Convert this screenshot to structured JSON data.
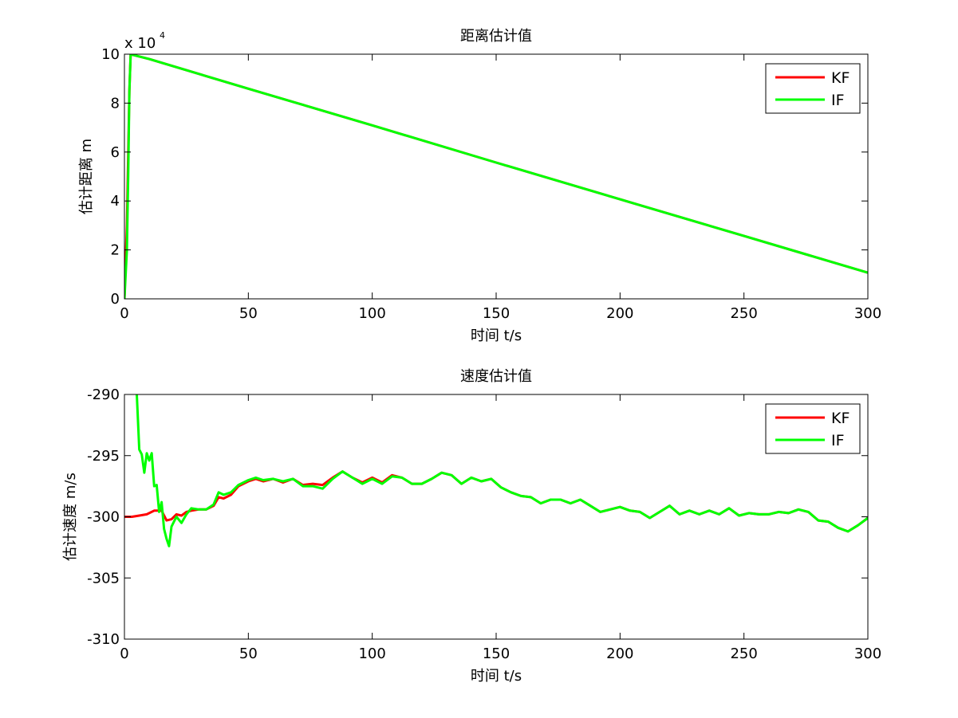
{
  "chart_data": [
    {
      "type": "line",
      "title": "距离估计值",
      "xlabel": "时间 t/s",
      "ylabel": "估计距离 m",
      "xlim": [
        0,
        300
      ],
      "ylim": [
        0,
        100000
      ],
      "xticks": [
        0,
        50,
        100,
        150,
        200,
        250,
        300
      ],
      "yticks": [
        0,
        20000,
        40000,
        60000,
        80000,
        100000
      ],
      "ytick_labels": [
        "0",
        "2",
        "4",
        "6",
        "8",
        "10"
      ],
      "y_multiplier": "x 10",
      "y_multiplier_exp": "4",
      "legend_position": "top-right",
      "grid": false,
      "series": [
        {
          "name": "KF",
          "color": "#ff0000",
          "x": [
            0,
            1,
            2,
            2.5,
            3,
            10,
            50,
            100,
            150,
            200,
            250,
            300
          ],
          "y": [
            0,
            30000,
            85000,
            100000,
            99800,
            98000,
            85900,
            70900,
            55700,
            40700,
            25700,
            10700
          ]
        },
        {
          "name": "IF",
          "color": "#00ff00",
          "x": [
            0,
            1,
            1.5,
            2,
            2.5,
            3,
            10,
            50,
            100,
            150,
            200,
            250,
            300
          ],
          "y": [
            0,
            20000,
            50000,
            85000,
            100000,
            99800,
            98000,
            85900,
            70900,
            55700,
            40700,
            25700,
            10700
          ]
        }
      ]
    },
    {
      "type": "line",
      "title": "速度估计值",
      "xlabel": "时间 t/s",
      "ylabel": "估计速度 m/s",
      "xlim": [
        0,
        300
      ],
      "ylim": [
        -310,
        -290
      ],
      "xticks": [
        0,
        50,
        100,
        150,
        200,
        250,
        300
      ],
      "yticks": [
        -310,
        -305,
        -300,
        -295,
        -290
      ],
      "ytick_labels": [
        "-310",
        "-305",
        "-300",
        "-295",
        "-290"
      ],
      "legend_position": "top-right",
      "grid": false,
      "series": [
        {
          "name": "KF",
          "color": "#ff0000",
          "x": [
            0,
            3,
            6,
            9,
            12,
            15,
            17,
            19,
            21,
            23,
            25,
            27,
            30,
            33,
            36,
            38,
            40,
            43,
            46,
            50,
            53,
            56,
            60,
            64,
            68,
            72,
            76,
            80,
            84,
            88,
            92,
            96,
            100,
            104,
            108,
            112,
            116,
            120,
            124,
            128,
            132,
            136,
            140,
            144,
            148,
            152,
            156,
            160,
            164,
            168,
            172,
            176,
            180,
            184,
            188,
            192,
            196,
            200,
            204,
            208,
            212,
            216,
            220,
            224,
            228,
            232,
            236,
            240,
            244,
            248,
            252,
            256,
            260,
            264,
            268,
            272,
            276,
            280,
            284,
            288,
            292,
            296,
            300
          ],
          "y": [
            -300,
            -300,
            -299.9,
            -299.8,
            -299.5,
            -299.5,
            -300.3,
            -300.2,
            -299.8,
            -299.9,
            -299.6,
            -299.5,
            -299.4,
            -299.4,
            -299.1,
            -298.4,
            -298.5,
            -298.2,
            -297.5,
            -297.1,
            -296.9,
            -297.1,
            -296.9,
            -297.2,
            -296.9,
            -297.4,
            -297.3,
            -297.4,
            -296.8,
            -296.3,
            -296.8,
            -297.2,
            -296.8,
            -297.2,
            -296.6,
            -296.8,
            -297.3,
            -297.3,
            -296.9,
            -296.4,
            -296.6,
            -297.3,
            -296.8,
            -297.1,
            -296.9,
            -297.6,
            -298.0,
            -298.3,
            -298.4,
            -298.9,
            -298.6,
            -298.6,
            -298.9,
            -298.6,
            -299.1,
            -299.6,
            -299.4,
            -299.2,
            -299.5,
            -299.6,
            -300.1,
            -299.6,
            -299.1,
            -299.8,
            -299.5,
            -299.8,
            -299.5,
            -299.8,
            -299.3,
            -299.9,
            -299.7,
            -299.8,
            -299.8,
            -299.6,
            -299.7,
            -299.4,
            -299.6,
            -300.3,
            -300.4,
            -300.9,
            -301.2,
            -300.7,
            -300.1
          ]
        },
        {
          "name": "IF",
          "color": "#00ff00",
          "x": [
            5,
            6,
            7,
            8,
            9,
            10,
            11,
            12,
            13,
            14,
            15,
            16,
            17,
            18,
            19,
            20,
            21,
            23,
            25,
            27,
            30,
            33,
            36,
            38,
            40,
            43,
            46,
            50,
            53,
            56,
            60,
            64,
            68,
            72,
            76,
            80,
            84,
            88,
            92,
            96,
            100,
            104,
            108,
            112,
            116,
            120,
            124,
            128,
            132,
            136,
            140,
            144,
            148,
            152,
            156,
            160,
            164,
            168,
            172,
            176,
            180,
            184,
            188,
            192,
            196,
            200,
            204,
            208,
            212,
            216,
            220,
            224,
            228,
            232,
            236,
            240,
            244,
            248,
            252,
            256,
            260,
            264,
            268,
            272,
            276,
            280,
            284,
            288,
            292,
            296,
            300
          ],
          "y": [
            -290,
            -294.5,
            -294.9,
            -296.4,
            -294.8,
            -295.4,
            -294.8,
            -297.5,
            -297.4,
            -299.6,
            -298.8,
            -301.0,
            -301.8,
            -302.4,
            -300.8,
            -300.4,
            -300.0,
            -300.5,
            -299.8,
            -299.3,
            -299.4,
            -299.4,
            -299.0,
            -298.0,
            -298.2,
            -298.0,
            -297.4,
            -297.0,
            -296.8,
            -297.0,
            -296.9,
            -297.1,
            -296.9,
            -297.5,
            -297.5,
            -297.7,
            -296.9,
            -296.3,
            -296.8,
            -297.3,
            -296.9,
            -297.3,
            -296.7,
            -296.8,
            -297.3,
            -297.3,
            -296.9,
            -296.4,
            -296.6,
            -297.3,
            -296.8,
            -297.1,
            -296.9,
            -297.6,
            -298.0,
            -298.3,
            -298.4,
            -298.9,
            -298.6,
            -298.6,
            -298.9,
            -298.6,
            -299.1,
            -299.6,
            -299.4,
            -299.2,
            -299.5,
            -299.6,
            -300.1,
            -299.6,
            -299.1,
            -299.8,
            -299.5,
            -299.8,
            -299.5,
            -299.8,
            -299.3,
            -299.9,
            -299.7,
            -299.8,
            -299.8,
            -299.6,
            -299.7,
            -299.4,
            -299.6,
            -300.3,
            -300.4,
            -300.9,
            -301.2,
            -300.7,
            -300.1
          ]
        }
      ]
    }
  ]
}
